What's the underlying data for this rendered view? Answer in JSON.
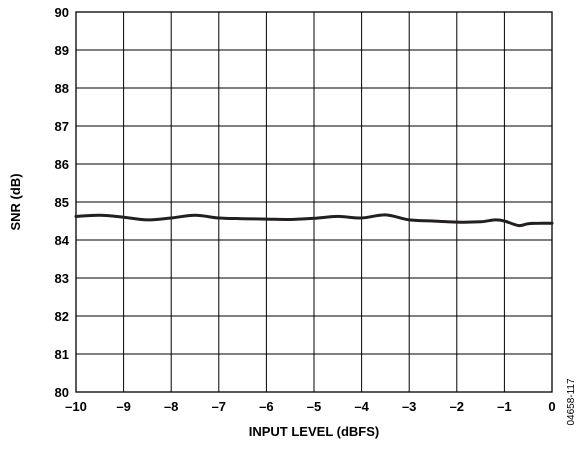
{
  "chart_data": {
    "type": "line",
    "xlabel": "INPUT LEVEL (dBFS)",
    "ylabel": "SNR (dB)",
    "xlim": [
      -10,
      0
    ],
    "ylim": [
      80,
      90
    ],
    "x_ticks": [
      "–10",
      "–9",
      "–8",
      "–7",
      "–6",
      "–5",
      "–4",
      "–3",
      "–2",
      "–1",
      "0"
    ],
    "y_ticks": [
      "80",
      "81",
      "82",
      "83",
      "84",
      "85",
      "86",
      "87",
      "88",
      "89",
      "90"
    ],
    "grid": true,
    "series": [
      {
        "x": [
          -10,
          -9.5,
          -9,
          -8.5,
          -8,
          -7.5,
          -7,
          -6.5,
          -6,
          -5.5,
          -5,
          -4.5,
          -4,
          -3.5,
          -3,
          -2.5,
          -2,
          -1.5,
          -1.2,
          -1,
          -0.7,
          -0.5,
          -0.25,
          0
        ],
        "y": [
          84.62,
          84.65,
          84.6,
          84.53,
          84.58,
          84.65,
          84.58,
          84.56,
          84.55,
          84.54,
          84.57,
          84.62,
          84.58,
          84.66,
          84.53,
          84.5,
          84.47,
          84.48,
          84.53,
          84.5,
          84.38,
          84.43,
          84.44,
          84.44
        ]
      }
    ]
  },
  "figure_id": "04658-117",
  "colors": {
    "line": "#231f20",
    "grid": "#000000",
    "background": "#ffffff"
  }
}
